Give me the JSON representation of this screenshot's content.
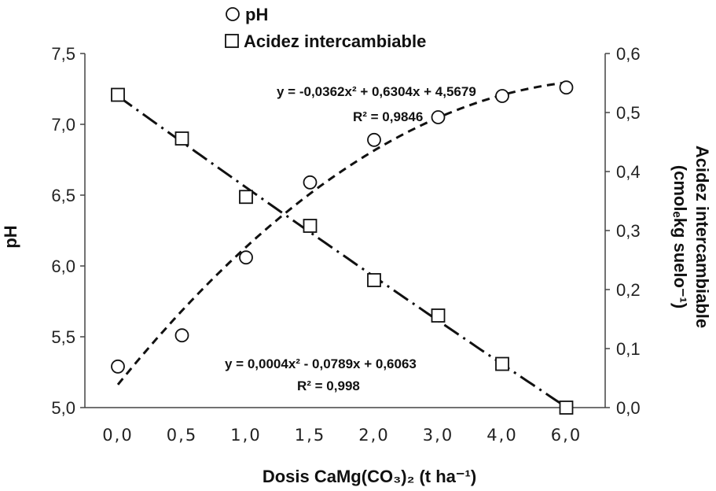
{
  "chart_data": {
    "type": "scatter",
    "categories": [
      "0,0",
      "0,5",
      "1,0",
      "1,5",
      "2,0",
      "3,0",
      "4,0",
      "6,0"
    ],
    "xlabel": "Dosis CaMg(CO₃)₂ (t ha⁻¹)",
    "ylabel_left": "pH",
    "ylabel_right_line1": "Acidez intercambiable",
    "ylabel_right_line2": "(cmolₑkg suelo⁻¹)",
    "y_left": {
      "ticks": [
        "5,0",
        "5,5",
        "6,0",
        "6,5",
        "7,0",
        "7,5"
      ],
      "range": [
        5.0,
        7.5
      ]
    },
    "y_right": {
      "ticks": [
        "0,0",
        "0,1",
        "0,2",
        "0,3",
        "0,4",
        "0,5",
        "0,6"
      ],
      "range": [
        0.0,
        0.6
      ]
    },
    "series": [
      {
        "name": "pH",
        "axis": "left",
        "marker": "circle",
        "values": [
          5.29,
          5.51,
          6.06,
          6.59,
          6.89,
          7.05,
          7.2,
          7.26
        ],
        "trend": {
          "a": -0.0362,
          "b": 0.6304,
          "c": 4.5679
        },
        "equation": "y = -0,0362x² + 0,6304x + 4,5679",
        "r2": "R² = 0,9846"
      },
      {
        "name": "Acidez intercambiable",
        "axis": "right",
        "marker": "square",
        "values": [
          0.53,
          0.456,
          0.357,
          0.308,
          0.216,
          0.156,
          0.074,
          0.0
        ],
        "trend": {
          "a": 0.0004,
          "b": -0.0789,
          "c": 0.6063
        },
        "equation": "y = 0,0004x² - 0,0789x + 0,6063",
        "r2": "R² = 0,998"
      }
    ],
    "legend": [
      "pH",
      "Acidez intercambiable"
    ],
    "legend_position": "top-center",
    "grid": false
  }
}
